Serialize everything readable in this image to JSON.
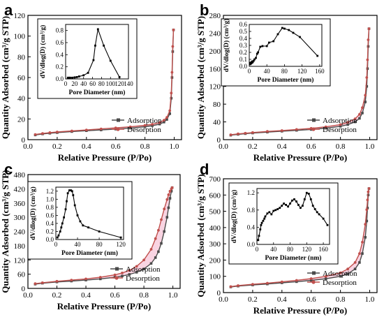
{
  "colors": {
    "adsorption": "#4a4a4a",
    "desorption": "#c0504d",
    "hysteresis_fill": "#f7c5d8"
  },
  "chart_data": [
    {
      "panel_label": "a",
      "type": "line",
      "xlabel": "Relative Pressure (P/Po)",
      "ylabel": "Quantity Adsorbed (cm³/g STP)",
      "xlim": [
        0.0,
        1.05
      ],
      "ylim": [
        0,
        120
      ],
      "xticks": [
        "0.0",
        "0.2",
        "0.4",
        "0.6",
        "0.8",
        "1.0"
      ],
      "yticks": [
        "0",
        "20",
        "40",
        "60",
        "80",
        "100",
        "120"
      ],
      "legend": {
        "placement": "bottom-right",
        "entries": [
          "Adsorption",
          "Desorption"
        ]
      },
      "series": [
        {
          "name": "Adsorption",
          "x": [
            0.05,
            0.1,
            0.15,
            0.2,
            0.3,
            0.4,
            0.5,
            0.6,
            0.7,
            0.8,
            0.85,
            0.9,
            0.93,
            0.95,
            0.97,
            0.98,
            0.985,
            0.99,
            0.995
          ],
          "y": [
            4.5,
            5.5,
            6.2,
            6.8,
            7.8,
            8.6,
            9.4,
            10.2,
            11.2,
            12.5,
            13.5,
            15.0,
            17.0,
            19.5,
            25.0,
            40.0,
            60.0,
            85.0,
            106.0
          ]
        },
        {
          "name": "Desorption",
          "x": [
            0.05,
            0.1,
            0.15,
            0.2,
            0.3,
            0.4,
            0.5,
            0.6,
            0.7,
            0.8,
            0.85,
            0.9,
            0.93,
            0.95,
            0.97,
            0.98,
            0.985,
            0.99,
            0.995
          ],
          "y": [
            5.0,
            6.0,
            6.8,
            7.4,
            8.4,
            9.4,
            10.4,
            11.4,
            12.4,
            13.8,
            14.8,
            16.5,
            18.8,
            21.5,
            28.0,
            45.0,
            65.0,
            90.0,
            106.0
          ]
        }
      ],
      "inset": {
        "xlabel": "Pore Diameter (nm)",
        "ylabel": "dV/dlog(D) (cm³/g)",
        "xlim": [
          0,
          140
        ],
        "ylim": [
          0,
          0.9
        ],
        "xticks": [
          "0",
          "20",
          "40",
          "60",
          "80",
          "100",
          "120",
          "140"
        ],
        "yticks": [
          "0.0",
          "0.2",
          "0.4",
          "0.6",
          "0.8"
        ],
        "x": [
          5,
          8,
          10,
          15,
          20,
          25,
          30,
          40,
          50,
          62,
          66,
          72,
          85,
          100,
          120
        ],
        "y": [
          0.02,
          0.02,
          0.02,
          0.02,
          0.025,
          0.03,
          0.04,
          0.06,
          0.1,
          0.31,
          0.55,
          0.82,
          0.55,
          0.3,
          0.03
        ]
      }
    },
    {
      "panel_label": "b",
      "type": "line",
      "xlabel": "Relative Pressure (P/Po)",
      "ylabel": "Quantity Adsorbed (cm³/g STP)",
      "xlim": [
        0.0,
        1.05
      ],
      "ylim": [
        0,
        280
      ],
      "xticks": [
        "0.0",
        "0.2",
        "0.4",
        "0.6",
        "0.8",
        "1.0"
      ],
      "yticks": [
        "0",
        "40",
        "80",
        "120",
        "160",
        "200",
        "240",
        "280"
      ],
      "legend": {
        "placement": "bottom-right",
        "entries": [
          "Adsorption",
          "Desorption"
        ]
      },
      "series": [
        {
          "name": "Adsorption",
          "x": [
            0.05,
            0.1,
            0.15,
            0.2,
            0.3,
            0.4,
            0.5,
            0.6,
            0.7,
            0.8,
            0.85,
            0.9,
            0.93,
            0.95,
            0.97,
            0.98,
            0.985,
            0.99,
            0.995
          ],
          "y": [
            10,
            12,
            13.5,
            15,
            17,
            19,
            21,
            23,
            26,
            30,
            34,
            40,
            48,
            60,
            85,
            120,
            160,
            210,
            250
          ]
        },
        {
          "name": "Desorption",
          "x": [
            0.05,
            0.1,
            0.15,
            0.2,
            0.3,
            0.4,
            0.5,
            0.6,
            0.7,
            0.8,
            0.85,
            0.9,
            0.93,
            0.95,
            0.97,
            0.98,
            0.985,
            0.99,
            0.995
          ],
          "y": [
            11,
            13,
            14.5,
            16,
            18.5,
            20.5,
            23,
            25.5,
            29,
            34,
            39,
            47,
            57,
            72,
            100,
            140,
            180,
            225,
            250
          ]
        }
      ],
      "inset": {
        "xlabel": "Pore Diameter (nm)",
        "ylabel": "dV/dlog(D) (cm³/g)",
        "xlim": [
          0,
          165
        ],
        "ylim": [
          0,
          0.6
        ],
        "xticks": [
          "0",
          "40",
          "80",
          "120",
          "160"
        ],
        "yticks": [
          "0.0",
          "0.1",
          "0.2",
          "0.3",
          "0.4",
          "0.5",
          "0.6"
        ],
        "x": [
          2,
          3,
          4,
          5,
          6,
          7,
          8,
          10,
          12,
          15,
          18,
          20,
          25,
          30,
          40,
          45,
          55,
          65,
          75,
          80,
          90,
          100,
          115,
          155
        ],
        "y": [
          0.03,
          0.05,
          0.04,
          0.06,
          0.05,
          0.07,
          0.06,
          0.08,
          0.1,
          0.12,
          0.18,
          0.2,
          0.28,
          0.29,
          0.29,
          0.34,
          0.36,
          0.46,
          0.55,
          0.54,
          0.52,
          0.48,
          0.42,
          0.15
        ]
      }
    },
    {
      "panel_label": "c",
      "type": "line",
      "xlabel": "Relative Pressure (P/Po)",
      "ylabel": "Quantity Adsorbed (cm³/g STP)",
      "xlim": [
        0.0,
        1.05
      ],
      "ylim": [
        0,
        480
      ],
      "xticks": [
        "0.0",
        "0.2",
        "0.4",
        "0.6",
        "0.8",
        "1.0"
      ],
      "yticks": [
        "0",
        "60",
        "120",
        "180",
        "240",
        "300",
        "360",
        "420",
        "480"
      ],
      "legend": {
        "placement": "bottom-right",
        "entries": [
          "Adsorption",
          "Desorption"
        ]
      },
      "series": [
        {
          "name": "Adsorption",
          "x": [
            0.05,
            0.1,
            0.2,
            0.3,
            0.4,
            0.5,
            0.6,
            0.65,
            0.7,
            0.75,
            0.8,
            0.85,
            0.88,
            0.9,
            0.92,
            0.94,
            0.96,
            0.97,
            0.98,
            0.99,
            0.995
          ],
          "y": [
            18,
            22,
            27,
            31,
            35,
            40,
            47,
            52,
            59,
            68,
            82,
            105,
            130,
            155,
            190,
            240,
            300,
            340,
            380,
            410,
            425
          ]
        },
        {
          "name": "Desorption",
          "x": [
            0.05,
            0.1,
            0.2,
            0.3,
            0.4,
            0.5,
            0.6,
            0.65,
            0.7,
            0.75,
            0.8,
            0.85,
            0.88,
            0.9,
            0.92,
            0.94,
            0.96,
            0.97,
            0.98,
            0.99,
            0.995
          ],
          "y": [
            20,
            24,
            30,
            35,
            40,
            47,
            57,
            65,
            76,
            93,
            120,
            165,
            210,
            245,
            290,
            335,
            375,
            395,
            410,
            420,
            425
          ]
        }
      ],
      "inset": {
        "xlabel": "Pore Diameter (nm)",
        "ylabel": "dV/dlog(D) (cm³/g)",
        "xlim": [
          0,
          125
        ],
        "ylim": [
          0,
          1.3
        ],
        "xticks": [
          "0",
          "40",
          "80",
          "120"
        ],
        "yticks": [
          "0.0",
          "0.2",
          "0.4",
          "0.6",
          "0.8",
          "1.0",
          "1.2"
        ],
        "x": [
          3,
          5,
          8,
          10,
          12,
          15,
          18,
          20,
          22,
          25,
          28,
          30,
          32,
          35,
          40,
          45,
          50,
          60,
          80,
          120
        ],
        "y": [
          0.05,
          0.1,
          0.2,
          0.3,
          0.4,
          0.55,
          0.75,
          0.95,
          1.15,
          1.22,
          1.22,
          1.2,
          1.1,
          0.85,
          0.6,
          0.45,
          0.35,
          0.3,
          0.2,
          0.05
        ]
      }
    },
    {
      "panel_label": "d",
      "type": "line",
      "xlabel": "Relative Pressure (P/Po)",
      "ylabel": "Quantity Adsorbed (cm³/g STP)",
      "xlim": [
        0.0,
        1.05
      ],
      "ylim": [
        0,
        700
      ],
      "xticks": [
        "0.0",
        "0.2",
        "0.4",
        "0.6",
        "0.8",
        "1.0"
      ],
      "yticks": [
        "0",
        "100",
        "200",
        "300",
        "400",
        "500",
        "600",
        "700"
      ],
      "legend": {
        "placement": "bottom-right",
        "entries": [
          "Adsorption",
          "Desorption"
        ]
      },
      "series": [
        {
          "name": "Adsorption",
          "x": [
            0.05,
            0.1,
            0.2,
            0.3,
            0.4,
            0.5,
            0.6,
            0.7,
            0.8,
            0.85,
            0.9,
            0.93,
            0.95,
            0.97,
            0.98,
            0.985,
            0.99,
            0.995
          ],
          "y": [
            35,
            40,
            47,
            53,
            60,
            67,
            75,
            85,
            100,
            115,
            145,
            185,
            240,
            340,
            440,
            520,
            600,
            640
          ]
        },
        {
          "name": "Desorption",
          "x": [
            0.05,
            0.1,
            0.2,
            0.3,
            0.4,
            0.5,
            0.6,
            0.7,
            0.8,
            0.85,
            0.9,
            0.93,
            0.95,
            0.97,
            0.98,
            0.985,
            0.99,
            0.995
          ],
          "y": [
            37,
            43,
            51,
            58,
            66,
            75,
            86,
            100,
            122,
            145,
            185,
            240,
            310,
            420,
            510,
            570,
            620,
            640
          ]
        }
      ],
      "inset": {
        "xlabel": "Pore Diameter (nm)",
        "ylabel": "dV/dlog(D) (cm³/g)",
        "xlim": [
          0,
          175
        ],
        "ylim": [
          0,
          1.3
        ],
        "xticks": [
          "0",
          "40",
          "80",
          "120",
          "160"
        ],
        "yticks": [
          "0.0",
          "0.4",
          "0.8",
          "1.2"
        ],
        "x": [
          3,
          5,
          8,
          10,
          12,
          15,
          18,
          20,
          25,
          30,
          35,
          40,
          45,
          50,
          55,
          60,
          65,
          70,
          75,
          80,
          85,
          90,
          95,
          100,
          105,
          110,
          115,
          120,
          125,
          130,
          135,
          140,
          145,
          150,
          160,
          170
        ],
        "y": [
          0.1,
          0.2,
          0.35,
          0.45,
          0.5,
          0.55,
          0.6,
          0.65,
          0.72,
          0.75,
          0.7,
          0.78,
          0.8,
          0.82,
          0.85,
          0.9,
          0.95,
          0.92,
          0.88,
          0.95,
          1.02,
          1.05,
          1.0,
          0.92,
          0.85,
          0.9,
          1.05,
          1.2,
          1.18,
          1.05,
          0.9,
          0.82,
          0.75,
          0.7,
          0.6,
          0.45
        ]
      }
    }
  ]
}
